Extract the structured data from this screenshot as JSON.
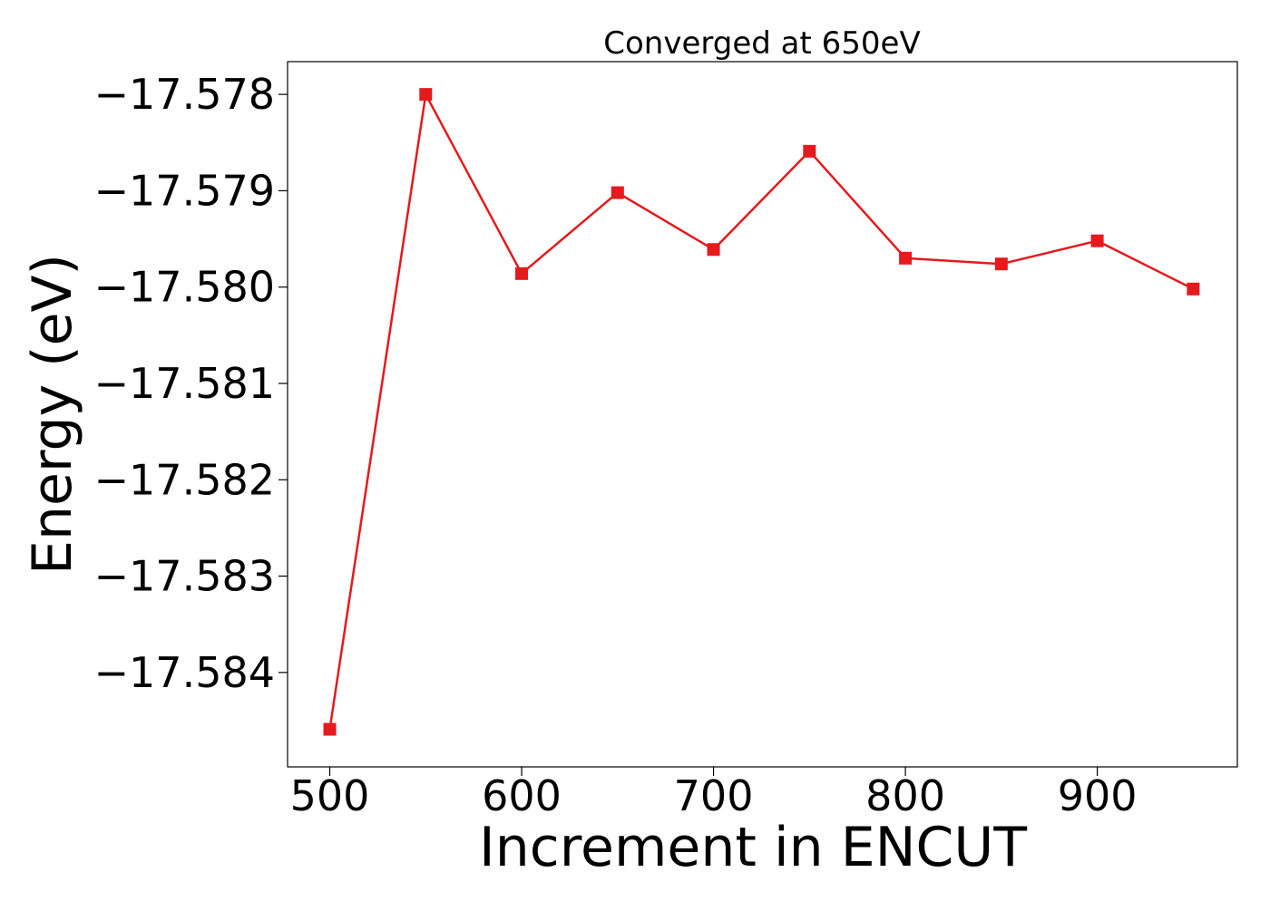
{
  "chart_data": {
    "type": "line",
    "title": "Converged at 650eV",
    "xlabel": "Increment in ENCUT",
    "ylabel": "Energy (eV)",
    "x": [
      500,
      550,
      600,
      650,
      700,
      750,
      800,
      850,
      900,
      950
    ],
    "series": [
      {
        "values": [
          -17.58459,
          -17.578,
          -17.57986,
          -17.57902,
          -17.57961,
          -17.57859,
          -17.5797,
          -17.57976,
          -17.57952,
          -17.58002
        ],
        "color": "#e41a1c",
        "marker": "square"
      }
    ],
    "xlim": [
      478,
      973
    ],
    "ylim": [
      -17.58498,
      -17.57766
    ],
    "xticks": [
      500,
      600,
      700,
      800,
      900
    ],
    "xtick_labels": [
      "500",
      "600",
      "700",
      "800",
      "900"
    ],
    "yticks": [
      -17.578,
      -17.579,
      -17.58,
      -17.581,
      -17.582,
      -17.583,
      -17.584
    ],
    "ytick_labels": [
      "−17.578",
      "−17.579",
      "−17.580",
      "−17.581",
      "−17.582",
      "−17.583",
      "−17.584"
    ],
    "grid": false,
    "legend": "none"
  }
}
